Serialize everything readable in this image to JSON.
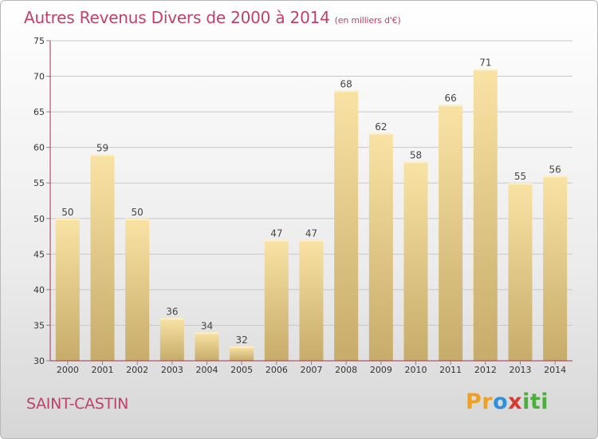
{
  "title": "Autres Revenus Divers de 2000 à 2014",
  "subtitle": "(en milliers d'€)",
  "commune": "SAINT-CASTIN",
  "logo": {
    "part1": "Pr",
    "part2": "o",
    "part3": "x",
    "part4": "iti"
  },
  "colors": {
    "title": "#c0406b",
    "bar_light": "#f9e3a4",
    "bar_dark": "#c7ab6a",
    "grid": "#c8c8c8",
    "axis": "#a8324f"
  },
  "chart_data": {
    "type": "bar",
    "title": "Autres Revenus Divers de 2000 à 2014",
    "subtitle": "(en milliers d'€)",
    "xlabel": "",
    "ylabel": "",
    "ylim": [
      30,
      75
    ],
    "yticks": [
      30,
      35,
      40,
      45,
      50,
      55,
      60,
      65,
      70,
      75
    ],
    "grid": true,
    "categories": [
      "2000",
      "2001",
      "2002",
      "2003",
      "2004",
      "2005",
      "2006",
      "2007",
      "2008",
      "2009",
      "2010",
      "2011",
      "2012",
      "2013",
      "2014"
    ],
    "values": [
      50,
      59,
      50,
      36,
      34,
      32,
      47,
      47,
      68,
      62,
      58,
      66,
      71,
      55,
      56
    ]
  }
}
